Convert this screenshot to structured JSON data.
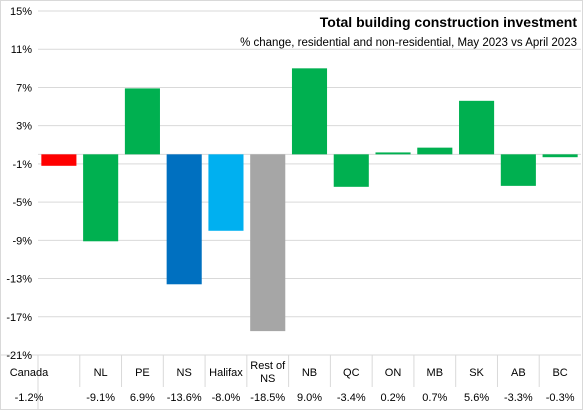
{
  "chart_data": {
    "type": "bar",
    "title": "Total building construction investment",
    "subtitle": "% change, residential and non-residential, May 2023 vs April 2023",
    "categories": [
      "Canada",
      "NL",
      "PE",
      "NS",
      "Halifax",
      "Rest of NS",
      "NB",
      "QC",
      "ON",
      "MB",
      "SK",
      "AB",
      "BC"
    ],
    "values": [
      -1.2,
      -9.1,
      6.9,
      -13.6,
      -8.0,
      -18.5,
      9.0,
      -3.4,
      0.2,
      0.7,
      5.6,
      -3.3,
      -0.3
    ],
    "value_labels": [
      "-1.2%",
      "-9.1%",
      "6.9%",
      "-13.6%",
      "-8.0%",
      "-18.5%",
      "9.0%",
      "-3.4%",
      "0.2%",
      "0.7%",
      "5.6%",
      "-3.3%",
      "-0.3%"
    ],
    "bar_colors": [
      "#ff0000",
      "#00b050",
      "#00b050",
      "#0070c0",
      "#00b0f0",
      "#a6a6a6",
      "#00b050",
      "#00b050",
      "#00b050",
      "#00b050",
      "#00b050",
      "#00b050",
      "#00b050"
    ],
    "ylim": [
      -21,
      15
    ],
    "yticks": [
      15,
      11,
      7,
      3,
      -1,
      -5,
      -9,
      -13,
      -17,
      -21
    ],
    "ytick_labels": [
      "15%",
      "11%",
      "7%",
      "3%",
      "-1%",
      "-5%",
      "-9%",
      "-13%",
      "-17%",
      "-21%"
    ],
    "xlabel": "",
    "ylabel": "",
    "grid": true,
    "legend": "none",
    "data_table": true
  }
}
